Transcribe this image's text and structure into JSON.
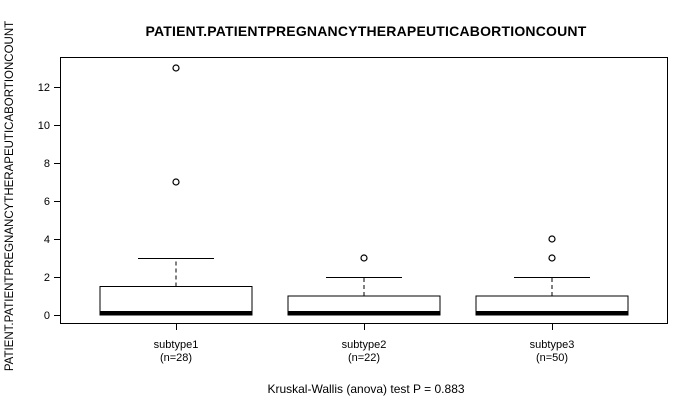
{
  "figure": {
    "title": "PATIENT.PATIENTPREGNANCYTHERAPEUTICABORTIONCOUNT",
    "y_axis_label": "PATIENT.PATIENTPREGNANCYTHERAPEUTICABORTIONCOUNT",
    "caption": "Kruskal-Wallis (anova) test P = 0.883"
  },
  "chart_data": {
    "type": "boxplot",
    "title": "PATIENT.PATIENTPREGNANCYTHERAPEUTICABORTIONCOUNT",
    "ylabel": "PATIENT.PATIENTPREGNANCYTHERAPEUTICABORTIONCOUNT",
    "stat_caption": "Kruskal-Wallis (anova) test P = 0.883",
    "yticks": [
      0,
      2,
      4,
      6,
      8,
      10,
      12
    ],
    "ylim": [
      -0.5,
      13.6
    ],
    "grid": false,
    "legend": "none",
    "groups": [
      {
        "label": "subtype1",
        "n_label": "(n=28)",
        "n": 28,
        "q1": 0,
        "median": 0,
        "q3": 1.5,
        "whisker_low": 0,
        "whisker_high": 3,
        "outliers": [
          7,
          13
        ]
      },
      {
        "label": "subtype2",
        "n_label": "(n=22)",
        "n": 22,
        "q1": 0,
        "median": 0,
        "q3": 1,
        "whisker_low": 0,
        "whisker_high": 2,
        "outliers": [
          3
        ]
      },
      {
        "label": "subtype3",
        "n_label": "(n=50)",
        "n": 50,
        "q1": 0,
        "median": 0,
        "q3": 1,
        "whisker_low": 0,
        "whisker_high": 2,
        "outliers": [
          3,
          4
        ]
      }
    ]
  },
  "colors": {
    "line": "#000000",
    "box_fill": "#ffffff",
    "background": "#ffffff"
  }
}
